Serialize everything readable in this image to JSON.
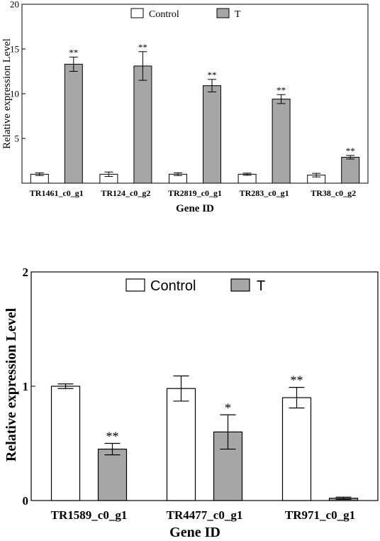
{
  "colors": {
    "control": "#ffffff",
    "treatment": "#a6a6a6",
    "stroke": "#000000"
  },
  "chart_data": [
    {
      "type": "bar",
      "title": "",
      "xlabel": "Gene ID",
      "ylabel": "Relative expression Level",
      "ylim": [
        0,
        20
      ],
      "yticks": [
        5,
        10,
        15,
        20
      ],
      "legend": {
        "placement": "top-center",
        "entries": [
          "Control",
          "T"
        ]
      },
      "categories": [
        "TR1461_c0_g1",
        "TR124_c0_g2",
        "TR2819_c0_g1",
        "TR283_c0_g1",
        "TR38_c0_g2"
      ],
      "series": [
        {
          "name": "Control",
          "values": [
            1.0,
            1.0,
            1.0,
            1.0,
            0.9
          ],
          "errors": [
            0.15,
            0.25,
            0.15,
            0.12,
            0.2
          ]
        },
        {
          "name": "T",
          "values": [
            13.3,
            13.1,
            10.9,
            9.4,
            2.9
          ],
          "errors": [
            0.8,
            1.6,
            0.7,
            0.5,
            0.2
          ]
        }
      ],
      "annotations": [
        "**",
        "**",
        "**",
        "**",
        "**"
      ]
    },
    {
      "type": "bar",
      "title": "",
      "xlabel": "Gene ID",
      "ylabel": "Relative expression Level",
      "ylim": [
        0,
        2
      ],
      "yticks": [
        0,
        1,
        2
      ],
      "legend": {
        "placement": "top-center",
        "entries": [
          "Control",
          "T"
        ]
      },
      "categories": [
        "TR1589_c0_g1",
        "TR4477_c0_g1",
        "TR971_c0_g1"
      ],
      "series": [
        {
          "name": "Control",
          "values": [
            1.0,
            0.98,
            0.9
          ],
          "errors": [
            0.02,
            0.11,
            0.09
          ]
        },
        {
          "name": "T",
          "values": [
            0.45,
            0.6,
            0.02
          ],
          "errors": [
            0.05,
            0.15,
            0.01
          ]
        }
      ],
      "annotations": [
        {
          "series": "T",
          "index": 0,
          "text": "**"
        },
        {
          "series": "T",
          "index": 1,
          "text": "*"
        },
        {
          "series": "Control",
          "index": 2,
          "text": "**"
        }
      ]
    }
  ]
}
